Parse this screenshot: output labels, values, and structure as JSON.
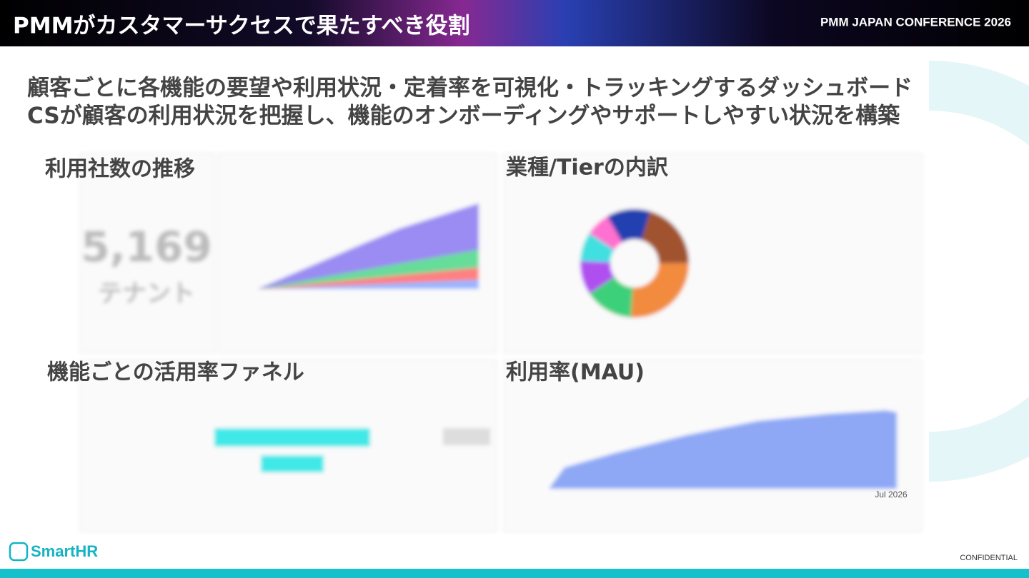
{
  "header": {
    "title": "PMMがカスタマーサクセスで果たすべき役割",
    "conference": "PMM JAPAN CONFERENCE 2026"
  },
  "lead": [
    "顧客ごとに各機能の要望や利用状況・定着率を可視化・トラッキングするダッシュボード",
    "CSが顧客の利用状況を把握し、機能のオンボーディングやサポートしやすい状況を構築"
  ],
  "panels": [
    {
      "label": "利用社数の推移",
      "value": "5,169",
      "unit": "テナント"
    },
    {
      "label": "業種/Tierの内訳"
    },
    {
      "label": "機能ごとの活用率ファネル"
    },
    {
      "label": "利用率(MAU)",
      "axis_label": "Jul 2026"
    }
  ],
  "footer": {
    "logo": "SmartHR",
    "note": "CONFIDENTIAL"
  }
}
